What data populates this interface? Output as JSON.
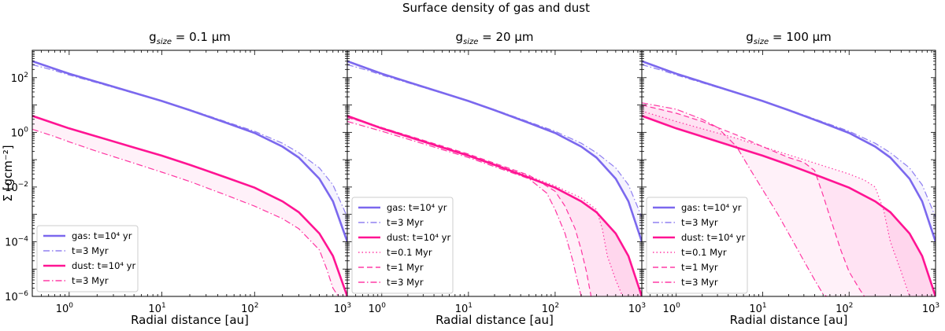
{
  "figure_title": "Surface density of gas and dust",
  "chart_data": [
    {
      "type": "line",
      "title_prefix": "g",
      "title_sub": "size",
      "title_value": " = 0.1 μm",
      "xlabel": "Radial distance [au]",
      "ylabel": "Σ [gcm⁻²]",
      "xscale": "log",
      "yscale": "log",
      "xlim": [
        0.4,
        1000
      ],
      "ylim": [
        1e-06,
        1000
      ],
      "x_ticks": [
        {
          "base": "10",
          "exp": "0"
        },
        {
          "base": "10",
          "exp": "1"
        },
        {
          "base": "10",
          "exp": "2"
        },
        {
          "base": "10",
          "exp": "3"
        }
      ],
      "y_ticks": [
        {
          "base": "10",
          "exp": "−6"
        },
        {
          "base": "10",
          "exp": "−4"
        },
        {
          "base": "10",
          "exp": "−2"
        },
        {
          "base": "10",
          "exp": "0"
        },
        {
          "base": "10",
          "exp": "2"
        }
      ],
      "legend_position": "lower-left",
      "colors": {
        "gas": "#7b68ee",
        "dust": "#ff1493"
      },
      "series": [
        {
          "name": "gas: t=10⁴ yr",
          "group": "gas",
          "style": "solid",
          "x": [
            0.4,
            0.7,
            1,
            2,
            5,
            10,
            20,
            50,
            100,
            200,
            300,
            500,
            700,
            1000
          ],
          "y": [
            400,
            210,
            140,
            70,
            28,
            14,
            6.5,
            2.2,
            0.95,
            0.3,
            0.12,
            0.02,
            0.003,
            0.0001
          ]
        },
        {
          "name": "t=3 Myr",
          "group": "gas",
          "style": "dashdot",
          "x": [
            0.4,
            0.7,
            1,
            2,
            5,
            10,
            20,
            50,
            100,
            200,
            300,
            500,
            700,
            1000
          ],
          "y": [
            300,
            180,
            125,
            65,
            27,
            14,
            6.8,
            2.4,
            1.1,
            0.4,
            0.18,
            0.05,
            0.012,
            0.0008
          ]
        },
        {
          "name": "dust: t=10⁴ yr",
          "group": "dust",
          "style": "solid",
          "x": [
            0.4,
            0.7,
            1,
            2,
            5,
            10,
            20,
            50,
            100,
            200,
            300,
            500,
            700,
            1000
          ],
          "y": [
            4,
            2.1,
            1.4,
            0.7,
            0.28,
            0.14,
            0.065,
            0.022,
            0.0095,
            0.003,
            0.0012,
            0.0002,
            3e-05,
            1e-06
          ]
        },
        {
          "name": "t=3 Myr",
          "group": "dust",
          "style": "dashdot",
          "x": [
            0.4,
            0.7,
            1,
            2,
            5,
            10,
            20,
            50,
            100,
            200,
            300,
            500,
            600,
            700,
            800
          ],
          "y": [
            1.3,
            0.7,
            0.45,
            0.2,
            0.075,
            0.035,
            0.016,
            0.005,
            0.002,
            0.0007,
            0.0003,
            5e-05,
            1e-05,
            2e-06,
            1e-06
          ]
        }
      ]
    },
    {
      "type": "line",
      "title_prefix": "g",
      "title_sub": "size",
      "title_value": " = 20 μm",
      "xlabel": "Radial distance [au]",
      "ylabel": "",
      "xscale": "log",
      "yscale": "log",
      "xlim": [
        0.4,
        1000
      ],
      "ylim": [
        1e-06,
        1000
      ],
      "x_ticks": [
        {
          "base": "10",
          "exp": "0"
        },
        {
          "base": "10",
          "exp": "1"
        },
        {
          "base": "10",
          "exp": "2"
        },
        {
          "base": "10",
          "exp": "3"
        }
      ],
      "y_ticks": [],
      "legend_position": "middle-left",
      "colors": {
        "gas": "#7b68ee",
        "dust": "#ff1493"
      },
      "series": [
        {
          "name": "gas: t=10⁴ yr",
          "group": "gas",
          "style": "solid",
          "x": [
            0.4,
            0.7,
            1,
            2,
            5,
            10,
            20,
            50,
            100,
            200,
            300,
            500,
            700,
            1000
          ],
          "y": [
            400,
            210,
            140,
            70,
            28,
            14,
            6.5,
            2.2,
            0.95,
            0.3,
            0.12,
            0.02,
            0.003,
            0.0001
          ]
        },
        {
          "name": "t=3 Myr",
          "group": "gas",
          "style": "dashdot",
          "x": [
            0.4,
            0.7,
            1,
            2,
            5,
            10,
            20,
            50,
            100,
            200,
            300,
            500,
            700,
            1000
          ],
          "y": [
            300,
            180,
            125,
            65,
            27,
            14,
            6.8,
            2.4,
            1.1,
            0.4,
            0.18,
            0.05,
            0.012,
            0.0008
          ]
        },
        {
          "name": "dust: t=10⁴ yr",
          "group": "dust",
          "style": "solid",
          "x": [
            0.4,
            0.7,
            1,
            2,
            5,
            10,
            20,
            50,
            100,
            200,
            300,
            500,
            700,
            1000
          ],
          "y": [
            4,
            2.1,
            1.4,
            0.7,
            0.28,
            0.14,
            0.065,
            0.022,
            0.0095,
            0.003,
            0.0012,
            0.0002,
            3e-05,
            1e-06
          ]
        },
        {
          "name": "t=0.1 Myr",
          "group": "dust",
          "style": "dotted",
          "x": [
            0.4,
            1,
            10,
            50,
            100,
            200,
            300,
            350,
            400,
            500,
            600
          ],
          "y": [
            4,
            1.5,
            0.15,
            0.025,
            0.011,
            0.004,
            0.0015,
            0.0003,
            3e-05,
            4e-06,
            1e-06
          ]
        },
        {
          "name": "t=1 Myr",
          "group": "dust",
          "style": "dashed",
          "x": [
            0.4,
            1,
            10,
            50,
            100,
            130,
            170,
            200,
            230,
            260
          ],
          "y": [
            3.5,
            1.5,
            0.16,
            0.027,
            0.007,
            0.002,
            0.0003,
            5e-05,
            8e-06,
            1e-06
          ]
        },
        {
          "name": "t=3 Myr",
          "group": "dust",
          "style": "dashdot",
          "x": [
            0.4,
            1,
            10,
            50,
            80,
            100,
            130,
            160,
            180,
            200
          ],
          "y": [
            2.5,
            1.1,
            0.12,
            0.02,
            0.006,
            0.0015,
            0.0002,
            2e-05,
            4e-06,
            1e-06
          ]
        }
      ]
    },
    {
      "type": "line",
      "title_prefix": "g",
      "title_sub": "size",
      "title_value": " = 100 μm",
      "xlabel": "Radial distance [au]",
      "ylabel": "",
      "xscale": "log",
      "yscale": "log",
      "xlim": [
        0.4,
        1000
      ],
      "ylim": [
        1e-06,
        1000
      ],
      "x_ticks": [
        {
          "base": "10",
          "exp": "0"
        },
        {
          "base": "10",
          "exp": "1"
        },
        {
          "base": "10",
          "exp": "2"
        },
        {
          "base": "10",
          "exp": "3"
        }
      ],
      "y_ticks": [],
      "legend_position": "middle-left",
      "colors": {
        "gas": "#7b68ee",
        "dust": "#ff1493"
      },
      "series": [
        {
          "name": "gas: t=10⁴ yr",
          "group": "gas",
          "style": "solid",
          "x": [
            0.4,
            0.7,
            1,
            2,
            5,
            10,
            20,
            50,
            100,
            200,
            300,
            500,
            700,
            1000
          ],
          "y": [
            400,
            210,
            140,
            70,
            28,
            14,
            6.5,
            2.2,
            0.95,
            0.3,
            0.12,
            0.02,
            0.003,
            0.0001
          ]
        },
        {
          "name": "t=3 Myr",
          "group": "gas",
          "style": "dashdot",
          "x": [
            0.4,
            0.7,
            1,
            2,
            5,
            10,
            20,
            50,
            100,
            200,
            300,
            500,
            700,
            1000
          ],
          "y": [
            300,
            180,
            125,
            65,
            27,
            14,
            6.8,
            2.4,
            1.1,
            0.4,
            0.18,
            0.05,
            0.012,
            0.0008
          ]
        },
        {
          "name": "dust: t=10⁴ yr",
          "group": "dust",
          "style": "solid",
          "x": [
            0.4,
            0.7,
            1,
            2,
            5,
            10,
            20,
            50,
            100,
            200,
            300,
            500,
            700,
            1000
          ],
          "y": [
            4,
            2.1,
            1.4,
            0.7,
            0.28,
            0.14,
            0.065,
            0.022,
            0.0095,
            0.003,
            0.0012,
            0.0002,
            3e-05,
            1e-06
          ]
        },
        {
          "name": "t=0.1 Myr",
          "group": "dust",
          "style": "dotted",
          "x": [
            0.4,
            1,
            5,
            10,
            50,
            100,
            150,
            200,
            250,
            300,
            400,
            500
          ],
          "y": [
            6,
            2.5,
            0.6,
            0.3,
            0.06,
            0.03,
            0.018,
            0.01,
            0.0015,
            0.0001,
            8e-06,
            1e-06
          ]
        },
        {
          "name": "t=1 Myr",
          "group": "dust",
          "style": "dashed",
          "x": [
            0.4,
            1,
            2,
            5,
            10,
            20,
            30,
            40,
            50,
            60,
            80,
            100,
            130,
            150
          ],
          "y": [
            10,
            5,
            2.5,
            0.8,
            0.3,
            0.12,
            0.08,
            0.04,
            0.005,
            0.0008,
            5e-05,
            8e-06,
            2e-06,
            1e-06
          ]
        },
        {
          "name": "t=3 Myr",
          "group": "dust",
          "style": "dashdot",
          "x": [
            0.4,
            1,
            2,
            3,
            5,
            7,
            10,
            15,
            20,
            30,
            40,
            50,
            55
          ],
          "y": [
            12,
            7,
            3,
            1.5,
            0.3,
            0.05,
            0.008,
            0.001,
            0.0002,
            2e-05,
            4e-06,
            1.2e-06,
            1e-06
          ]
        }
      ]
    }
  ]
}
